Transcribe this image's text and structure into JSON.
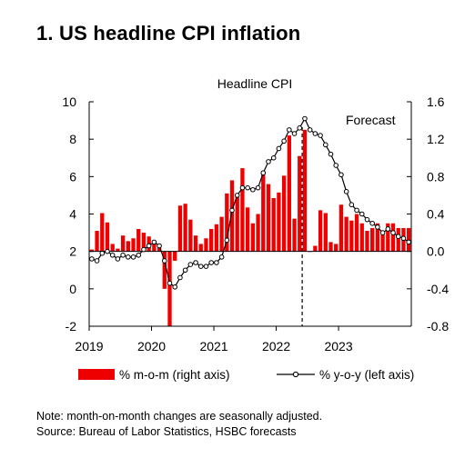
{
  "heading": "1. US headline CPI inflation",
  "notes": {
    "note": "Note: month-on-month changes are seasonally adjusted.",
    "source": "Source: Bureau of Labor Statistics, HSBC forecasts"
  },
  "chart_data": {
    "type": "bar+line",
    "title": "Headline CPI",
    "annotation": "Forecast",
    "forecast_start_date": "2022-06",
    "left_axis": {
      "range": [
        -2,
        10
      ],
      "ticks": [
        -2,
        0,
        2,
        4,
        6,
        8,
        10
      ],
      "labels": [
        "-2",
        "0",
        "2",
        "4",
        "6",
        "8",
        "10"
      ]
    },
    "right_axis": {
      "range": [
        -0.8,
        1.6
      ],
      "ticks": [
        -0.8,
        -0.4,
        0.0,
        0.4,
        0.8,
        1.2,
        1.6
      ],
      "labels": [
        "-0.8",
        "-0.4",
        "0.0",
        "0.4",
        "0.8",
        "1.2",
        "1.6"
      ]
    },
    "x_axis": {
      "years": [
        "2019",
        "2020",
        "2021",
        "2022",
        "2023"
      ]
    },
    "colors": {
      "bars": "#ee0000",
      "line": "#000000",
      "markers": "#ffffff"
    },
    "legend": {
      "placement": "bottom",
      "bars_label": "% m-o-m (right axis)",
      "line_label": "% y-o-y (left axis)"
    },
    "series": [
      {
        "name": "% m-o-m (right axis)",
        "axis": "right",
        "kind": "bar",
        "start": "2019-01",
        "values": [
          0.02,
          0.22,
          0.41,
          0.31,
          0.08,
          0.03,
          0.17,
          0.11,
          0.14,
          0.24,
          0.2,
          0.16,
          0.1,
          0.07,
          -0.4,
          -0.8,
          -0.1,
          0.49,
          0.51,
          0.34,
          0.17,
          0.08,
          0.14,
          0.24,
          0.29,
          0.37,
          0.62,
          0.76,
          0.62,
          0.89,
          0.47,
          0.3,
          0.4,
          0.86,
          0.72,
          0.57,
          0.63,
          0.81,
          1.24,
          0.35,
          1.02,
          1.3,
          0.0,
          0.06,
          0.44,
          0.41,
          0.1,
          0.08,
          0.5,
          0.37,
          0.33,
          0.4,
          0.3,
          0.22,
          0.25,
          0.3,
          0.2,
          0.3,
          0.3,
          0.25,
          0.25,
          0.25
        ]
      },
      {
        "name": "% y-o-y (left axis)",
        "axis": "left",
        "kind": "line",
        "start": "2019-01",
        "values": [
          1.6,
          1.5,
          1.9,
          2.0,
          1.8,
          1.6,
          1.8,
          1.7,
          1.7,
          1.8,
          2.1,
          2.3,
          2.5,
          2.3,
          1.5,
          0.3,
          0.1,
          0.6,
          1.0,
          1.3,
          1.4,
          1.2,
          1.2,
          1.4,
          1.4,
          1.7,
          2.6,
          4.2,
          5.0,
          5.4,
          5.4,
          5.3,
          5.4,
          6.2,
          6.8,
          7.0,
          7.5,
          7.9,
          8.5,
          8.3,
          8.6,
          9.1,
          8.5,
          8.3,
          8.2,
          7.7,
          7.2,
          6.6,
          6.1,
          5.2,
          4.5,
          4.2,
          4.0,
          3.7,
          3.5,
          3.3,
          3.0,
          3.2,
          3.0,
          2.8,
          2.7,
          2.5
        ]
      }
    ]
  }
}
